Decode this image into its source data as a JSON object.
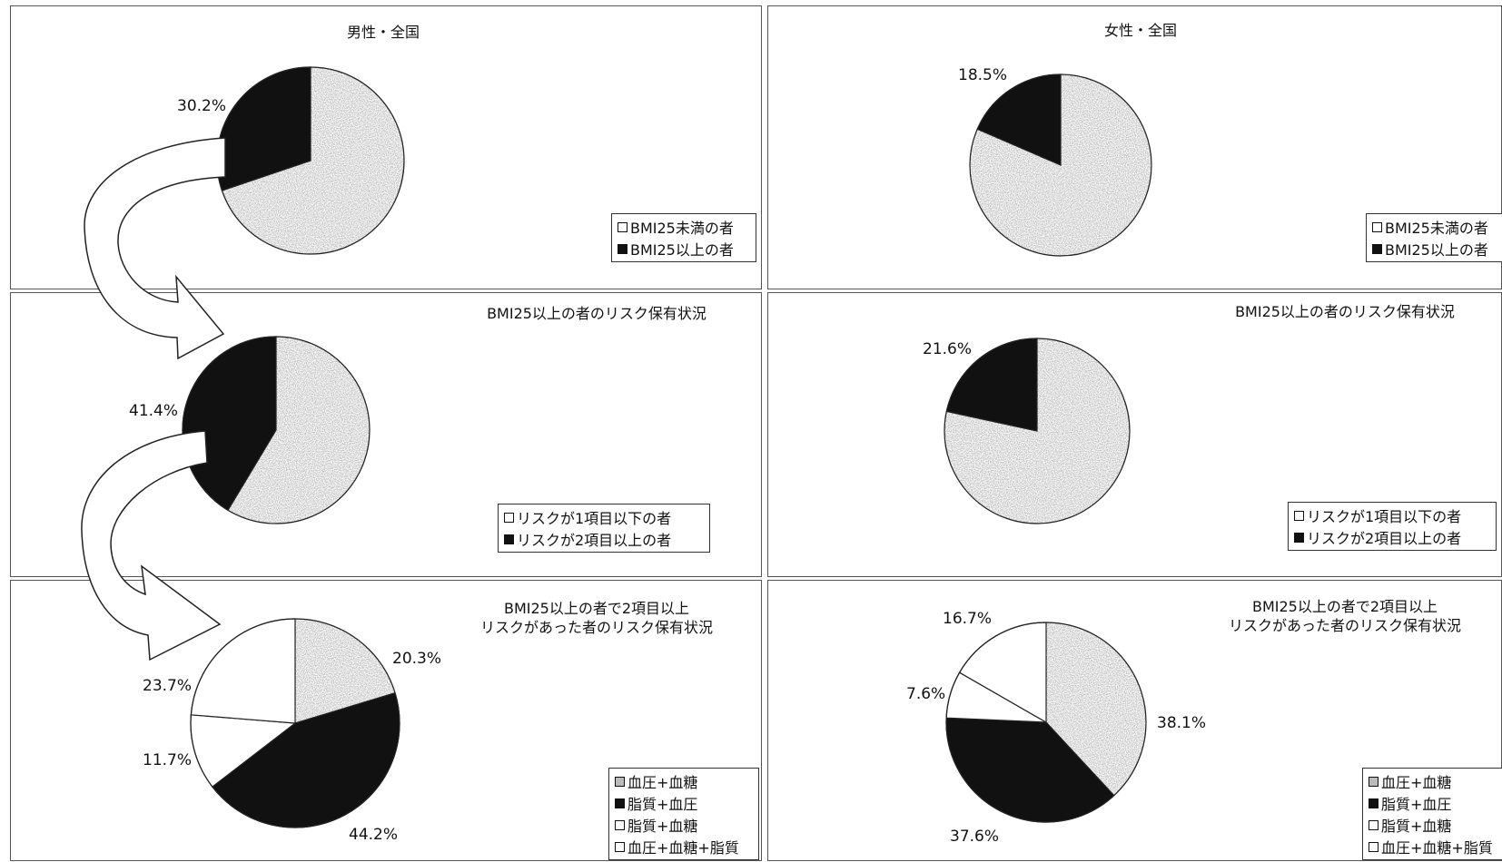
{
  "colors": {
    "gray": "#b3b3b3",
    "black": "#111111",
    "white": "#ffffff"
  },
  "chart_data": [
    {
      "type": "pie",
      "title": "男性・全国",
      "legend": [
        "BMI25未満の者",
        "BMI25以上の者"
      ],
      "slices": [
        {
          "label": "BMI25未満の者",
          "value": 69.8,
          "color": "gray"
        },
        {
          "label": "BMI25以上の者",
          "value": 30.2,
          "color": "black"
        }
      ],
      "value_labels": [
        "",
        "30.2%"
      ]
    },
    {
      "type": "pie",
      "title": "女性・全国",
      "legend": [
        "BMI25未満の者",
        "BMI25以上の者"
      ],
      "slices": [
        {
          "label": "BMI25未満の者",
          "value": 81.5,
          "color": "gray"
        },
        {
          "label": "BMI25以上の者",
          "value": 18.5,
          "color": "black"
        }
      ],
      "value_labels": [
        "",
        "18.5%"
      ]
    },
    {
      "type": "pie",
      "title": "BMI25以上の者のリスク保有状況",
      "legend": [
        "リスクが1項目以下の者",
        "リスクが2項目以上の者"
      ],
      "slices": [
        {
          "label": "リスクが1項目以下の者",
          "value": 58.6,
          "color": "gray"
        },
        {
          "label": "リスクが2項目以上の者",
          "value": 41.4,
          "color": "black"
        }
      ],
      "value_labels": [
        "",
        "41.4%"
      ]
    },
    {
      "type": "pie",
      "title": "BMI25以上の者のリスク保有状況",
      "legend": [
        "リスクが1項目以下の者",
        "リスクが2項目以上の者"
      ],
      "slices": [
        {
          "label": "リスクが1項目以下の者",
          "value": 78.4,
          "color": "gray"
        },
        {
          "label": "リスクが2項目以上の者",
          "value": 21.6,
          "color": "black"
        }
      ],
      "value_labels": [
        "",
        "21.6%"
      ]
    },
    {
      "type": "pie",
      "title": "BMI25以上の者で2項目以上\nリスクがあった者のリスク保有状況",
      "legend": [
        "血圧+血糖",
        "脂質+血圧",
        "脂質+血糖",
        "血圧+血糖+脂質"
      ],
      "slices": [
        {
          "label": "血圧+血糖",
          "value": 20.3,
          "color": "gray"
        },
        {
          "label": "脂質+血圧",
          "value": 44.2,
          "color": "black"
        },
        {
          "label": "脂質+血糖",
          "value": 11.7,
          "color": "white"
        },
        {
          "label": "血圧+血糖+脂質",
          "value": 23.7,
          "color": "white"
        }
      ],
      "value_labels": [
        "20.3%",
        "44.2%",
        "11.7%",
        "23.7%"
      ]
    },
    {
      "type": "pie",
      "title": "BMI25以上の者で2項目以上\nリスクがあった者のリスク保有状況",
      "legend": [
        "血圧+血糖",
        "脂質+血圧",
        "脂質+血糖",
        "血圧+血糖+脂質"
      ],
      "slices": [
        {
          "label": "血圧+血糖",
          "value": 38.1,
          "color": "gray"
        },
        {
          "label": "脂質+血圧",
          "value": 37.6,
          "color": "black"
        },
        {
          "label": "脂質+血糖",
          "value": 7.6,
          "color": "white"
        },
        {
          "label": "血圧+血糖+脂質",
          "value": 16.7,
          "color": "white"
        }
      ],
      "value_labels": [
        "38.1%",
        "37.6%",
        "7.6%",
        "16.7%"
      ]
    }
  ]
}
